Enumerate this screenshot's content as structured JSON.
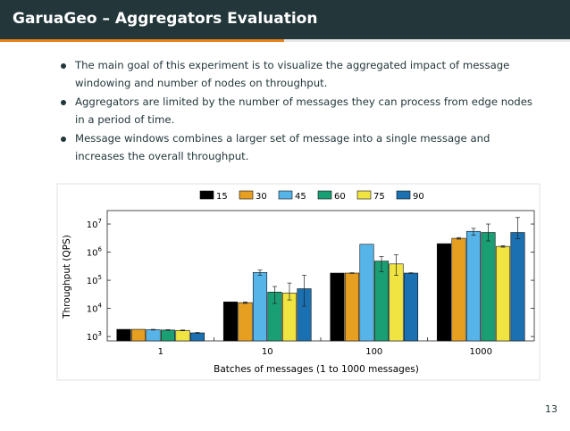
{
  "header": {
    "title": "GaruaGeo – Aggregators Evaluation"
  },
  "bullets": [
    "The main goal of this experiment is to visualize the aggregated impact of message windowing and number of nodes on throughput.",
    "Aggregators are limited by the number of messages they can process from edge nodes in a period of time.",
    "Message windows combines a larger set of message into a single message and increases the overall throughput."
  ],
  "page_number": "13",
  "colors": {
    "header_bg": "#23373b",
    "accent": "#eb811b"
  },
  "chart_data": {
    "type": "bar",
    "xlabel": "Batches of messages (1 to 1000 messages)",
    "ylabel": "Throughput (QPS)",
    "yscale": "log",
    "ylim": [
      700,
      30000000
    ],
    "yticks": [
      {
        "base": "10",
        "exp": "3",
        "value": 1000
      },
      {
        "base": "10",
        "exp": "4",
        "value": 10000
      },
      {
        "base": "10",
        "exp": "5",
        "value": 100000
      },
      {
        "base": "10",
        "exp": "6",
        "value": 1000000
      },
      {
        "base": "10",
        "exp": "7",
        "value": 10000000
      }
    ],
    "categories": [
      "1",
      "10",
      "100",
      "1000"
    ],
    "legend_position": "top",
    "grid": false,
    "series": [
      {
        "name": "15",
        "color": "#000000",
        "values": [
          1800,
          17000,
          180000,
          2000000
        ],
        "errors": [
          [
            1800,
            1800
          ],
          [
            17000,
            17000
          ],
          [
            180000,
            180000
          ],
          [
            2000000,
            2000000
          ]
        ]
      },
      {
        "name": "30",
        "color": "#e69f20",
        "values": [
          1800,
          16000,
          180000,
          3100000
        ],
        "errors": [
          [
            1800,
            1800
          ],
          [
            15000,
            17000
          ],
          [
            175000,
            185000
          ],
          [
            2900000,
            3300000
          ]
        ]
      },
      {
        "name": "45",
        "color": "#56b4e9",
        "values": [
          1750,
          190000,
          1900000,
          5500000
        ],
        "errors": [
          [
            1700,
            1800
          ],
          [
            150000,
            230000
          ],
          [
            1900000,
            1900000
          ],
          [
            4000000,
            7000000
          ]
        ]
      },
      {
        "name": "60",
        "color": "#1a9e73",
        "values": [
          1700,
          38000,
          480000,
          5000000
        ],
        "errors": [
          [
            1650,
            1750
          ],
          [
            15000,
            60000
          ],
          [
            200000,
            700000
          ],
          [
            2500000,
            10000000
          ]
        ]
      },
      {
        "name": "75",
        "color": "#f0e442",
        "values": [
          1650,
          35000,
          380000,
          1600000
        ],
        "errors": [
          [
            1600,
            1700
          ],
          [
            20000,
            80000
          ],
          [
            150000,
            800000
          ],
          [
            1500000,
            1700000
          ]
        ]
      },
      {
        "name": "90",
        "color": "#1a70b0",
        "values": [
          1350,
          50000,
          180000,
          5000000
        ],
        "errors": [
          [
            1300,
            1400
          ],
          [
            12000,
            150000
          ],
          [
            175000,
            185000
          ],
          [
            3000000,
            17000000
          ]
        ]
      }
    ]
  }
}
